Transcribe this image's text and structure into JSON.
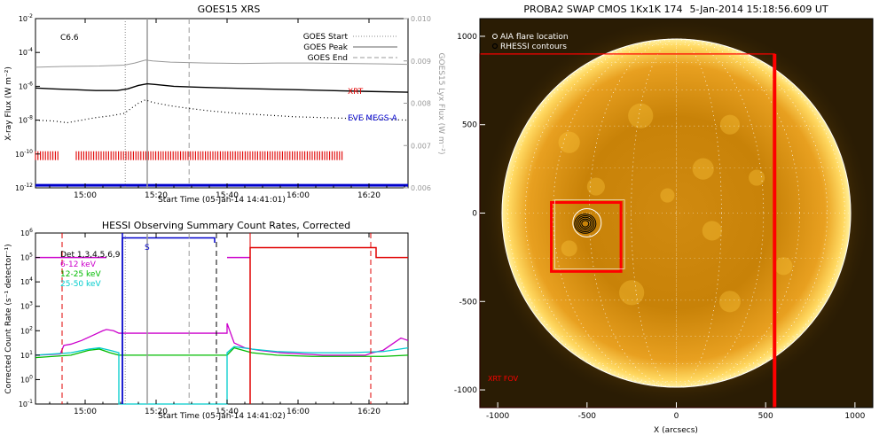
{
  "chart_data": [
    {
      "type": "line",
      "title": "GOES15 XRS",
      "xlabel": "Start Time (05-Jan-14 14:41:01)",
      "ylabel": "X-ray Flux (W m⁻²)",
      "y2label": "GOES15 Lyx Flux (W m⁻²)",
      "x_tick_labels": [
        "15:00",
        "15:20",
        "15:40",
        "16:00",
        "16:20"
      ],
      "x_ticks_min": [
        61,
        81,
        101,
        121,
        141
      ],
      "xlim_min": [
        47,
        152
      ],
      "y_log": true,
      "ylim_exp": [
        -12,
        -2
      ],
      "y_tick_exps": [
        -12,
        -10,
        -8,
        -6,
        -4,
        -2
      ],
      "y2lim": [
        0.006,
        0.01
      ],
      "y2_tick_labels": [
        "0.006",
        "0.007",
        "0.008",
        "0.009",
        "0.010"
      ],
      "y2_ticks": [
        0.006,
        0.007,
        0.008,
        0.009,
        0.01
      ],
      "class_label": "C6.6",
      "legend": {
        "start": "GOES Start",
        "peak": "GOES Peak",
        "end": "GOES End"
      },
      "markers_min": {
        "start": 72.3,
        "peak": 78.5,
        "end": 90.3
      },
      "labels": {
        "xrt": "XRT",
        "eve": "EVE MEGS-A"
      },
      "colors": {
        "xrt": "#e00000",
        "eve": "#0000cc",
        "lyx": "#999999"
      },
      "series": [
        {
          "name": "lyx",
          "axis": "y2",
          "x": [
            47,
            55,
            65,
            72,
            75,
            78,
            80,
            85,
            95,
            105,
            115,
            125,
            135,
            145,
            152
          ],
          "y": [
            0.00885,
            0.00887,
            0.00888,
            0.0089,
            0.00895,
            0.00902,
            0.009,
            0.00897,
            0.00895,
            0.00894,
            0.00895,
            0.00895,
            0.00894,
            0.00893,
            0.00892
          ]
        },
        {
          "name": "long",
          "x": [
            47,
            52,
            58,
            64,
            70,
            73,
            76,
            78.5,
            81,
            86,
            92,
            100,
            110,
            120,
            130,
            140,
            152
          ],
          "y": [
            -6.1,
            -6.15,
            -6.2,
            -6.25,
            -6.25,
            -6.15,
            -5.95,
            -5.85,
            -5.9,
            -6.0,
            -6.05,
            -6.1,
            -6.15,
            -6.2,
            -6.25,
            -6.3,
            -6.35
          ]
        },
        {
          "name": "short",
          "x": [
            47,
            52,
            56,
            60,
            64,
            68,
            72,
            74,
            76,
            78,
            80,
            85,
            90,
            96,
            104,
            112,
            120,
            128,
            136,
            144,
            152
          ],
          "y": [
            -8.0,
            -8.05,
            -8.15,
            -8.0,
            -7.85,
            -7.75,
            -7.6,
            -7.3,
            -7.0,
            -6.8,
            -6.95,
            -7.15,
            -7.3,
            -7.45,
            -7.6,
            -7.7,
            -7.8,
            -7.85,
            -7.9,
            -7.95,
            -8.0
          ]
        }
      ],
      "xrt_ranges_min": [
        [
          47,
          53.5
        ],
        [
          58.5,
          133.5
        ]
      ],
      "xrt_level_exp": -10.1,
      "eve_level_exp": -11.85
    },
    {
      "type": "line",
      "title": "HESSI Observing Summary Count Rates, Corrected",
      "xlabel": "Start Time (05-Jan-14 14:41:02)",
      "ylabel": "Corrected Count Rate (s⁻¹ detector⁻¹)",
      "x_tick_labels": [
        "15:00",
        "15:20",
        "15:40",
        "16:00",
        "16:20"
      ],
      "x_ticks_min": [
        61,
        81,
        101,
        121,
        141
      ],
      "xlim_min": [
        47,
        152
      ],
      "y_log": true,
      "ylim_exp": [
        -1,
        6
      ],
      "y_tick_exps": [
        -1,
        0,
        1,
        2,
        3,
        4,
        5,
        6
      ],
      "legend": [
        "Det 1,3,4,5,6,9",
        "6-12 keV",
        "12-25 keV",
        "25-50 keV"
      ],
      "legend_colors": [
        "#000000",
        "#cc00cc",
        "#00bb00",
        "#00cccc"
      ],
      "s_label": "S",
      "markers_min": {
        "start": 72.3,
        "peak": 78.5,
        "end": 90.3
      },
      "red_dashed_min": [
        54.5,
        141.5
      ],
      "black_dashed_min": [
        98.0
      ],
      "red_solid_min": [
        107.5
      ],
      "blue_solid_min": [
        71.5
      ],
      "flag_lines": [
        {
          "color": "#0000cc",
          "x": [
            71.5,
            71.5,
            97.5,
            97.5
          ],
          "y": [
            -1,
            5.8,
            5.8,
            5.6
          ]
        },
        {
          "color": "#cc00cc",
          "x": [
            47,
            67
          ],
          "y": [
            5.0,
            5.0
          ]
        },
        {
          "color": "#cc00cc",
          "x": [
            101,
            107.5
          ],
          "y": [
            5.0,
            5.0
          ]
        },
        {
          "color": "#e00000",
          "x": [
            107.5,
            107.5,
            143,
            143,
            152
          ],
          "y": [
            -1,
            5.4,
            5.4,
            5.0,
            5.0
          ]
        }
      ],
      "series": [
        {
          "name": "6-12 keV",
          "color": "#cc00cc",
          "x": [
            47,
            50,
            54,
            55,
            57,
            60,
            63,
            66,
            67,
            69,
            70.5,
            70.5,
            101,
            101,
            103,
            106,
            110,
            116,
            122,
            128,
            134,
            140,
            142,
            145,
            148,
            150,
            152
          ],
          "y": [
            1.0,
            1.02,
            1.05,
            1.4,
            1.45,
            1.6,
            1.8,
            2.0,
            2.05,
            2.0,
            1.9,
            1.9,
            1.9,
            2.3,
            1.5,
            1.3,
            1.2,
            1.1,
            1.05,
            1.0,
            1.0,
            1.0,
            1.1,
            1.2,
            1.5,
            1.7,
            1.6
          ]
        },
        {
          "name": "12-25 keV",
          "color": "#00bb00",
          "x": [
            47,
            52,
            57,
            62,
            65,
            68,
            70.5,
            101,
            103,
            108,
            115,
            125,
            135,
            145,
            152
          ],
          "y": [
            0.9,
            0.95,
            1.0,
            1.2,
            1.25,
            1.1,
            1.0,
            1.0,
            1.3,
            1.1,
            1.0,
            0.95,
            0.95,
            0.95,
            1.0
          ]
        },
        {
          "name": "25-50 keV",
          "color": "#00cccc",
          "x": [
            47,
            52,
            57,
            62,
            65,
            68,
            70.5,
            70.5,
            101,
            101,
            103,
            108,
            115,
            125,
            135,
            145,
            152
          ],
          "y": [
            1.0,
            1.05,
            1.1,
            1.25,
            1.3,
            1.2,
            1.1,
            -1.0,
            -1.0,
            1.1,
            1.35,
            1.25,
            1.15,
            1.1,
            1.1,
            1.15,
            1.3
          ]
        }
      ]
    },
    {
      "type": "image",
      "title": "PROBA2 SWAP CMOS 1Kx1K 174",
      "timestamp": "5-Jan-2014 15:18:56.609 UT",
      "xlabel": "X (arcsecs)",
      "ylabel": "",
      "x_ticks": [
        -1000,
        -500,
        0,
        500,
        1000
      ],
      "y_ticks": [
        -1000,
        -500,
        0,
        500,
        1000
      ],
      "xlim": [
        -1100,
        1100
      ],
      "ylim": [
        -1100,
        1100
      ],
      "solar_radius_arcsec": 976,
      "legend": [
        "AIA flare location",
        "RHESSI contours"
      ],
      "fov_label": "XRT FOV",
      "xrt_fov_arcsec": [
        -1100,
        -1100,
        550,
        900
      ],
      "flare_box_arcsec": [
        -700,
        -330,
        -310,
        60
      ],
      "flare_center_arcsec": [
        -510,
        -60
      ],
      "colors": {
        "sun": "#f0b020",
        "box": "#ff0000",
        "bg": "#2a1c04"
      }
    }
  ]
}
